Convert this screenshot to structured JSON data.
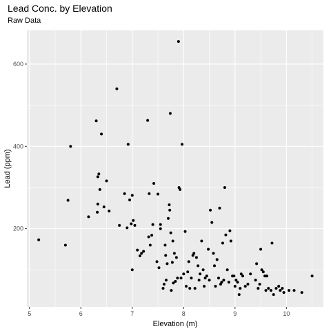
{
  "chart_data": {
    "type": "scatter",
    "title": "Lead Conc. by Elevation",
    "subtitle": "Raw Data",
    "xlabel": "Elevation (m)",
    "ylabel": "Lead (ppm)",
    "xlim": [
      4.95,
      10.72
    ],
    "ylim": [
      10,
      682
    ],
    "xticks": [
      5,
      6,
      7,
      8,
      9,
      10
    ],
    "yticks": [
      200,
      400,
      600
    ],
    "grid": true,
    "point_color": "#000000",
    "panel_color": "#ebebeb",
    "points": [
      [
        5.18,
        173
      ],
      [
        5.7,
        160
      ],
      [
        5.75,
        269
      ],
      [
        5.8,
        400
      ],
      [
        6.15,
        229
      ],
      [
        6.3,
        462
      ],
      [
        6.32,
        240
      ],
      [
        6.33,
        260
      ],
      [
        6.33,
        326
      ],
      [
        6.35,
        333
      ],
      [
        6.37,
        295
      ],
      [
        6.4,
        430
      ],
      [
        6.45,
        253
      ],
      [
        6.5,
        316
      ],
      [
        6.55,
        243
      ],
      [
        6.7,
        540
      ],
      [
        6.75,
        208
      ],
      [
        6.85,
        285
      ],
      [
        6.9,
        202
      ],
      [
        6.92,
        405
      ],
      [
        6.95,
        270
      ],
      [
        6.98,
        212
      ],
      [
        7.0,
        281
      ],
      [
        7.0,
        100
      ],
      [
        7.02,
        220
      ],
      [
        7.05,
        208
      ],
      [
        7.1,
        148
      ],
      [
        7.15,
        134
      ],
      [
        7.18,
        140
      ],
      [
        7.22,
        145
      ],
      [
        7.3,
        463
      ],
      [
        7.32,
        180
      ],
      [
        7.33,
        285
      ],
      [
        7.35,
        160
      ],
      [
        7.38,
        184
      ],
      [
        7.4,
        210
      ],
      [
        7.42,
        310
      ],
      [
        7.48,
        120
      ],
      [
        7.5,
        284
      ],
      [
        7.52,
        105
      ],
      [
        7.55,
        200
      ],
      [
        7.55,
        210
      ],
      [
        7.6,
        55
      ],
      [
        7.62,
        65
      ],
      [
        7.64,
        160
      ],
      [
        7.65,
        135
      ],
      [
        7.66,
        75
      ],
      [
        7.68,
        115
      ],
      [
        7.7,
        225
      ],
      [
        7.72,
        258
      ],
      [
        7.73,
        245
      ],
      [
        7.74,
        480
      ],
      [
        7.75,
        190
      ],
      [
        7.76,
        50
      ],
      [
        7.78,
        118
      ],
      [
        7.79,
        170
      ],
      [
        7.8,
        68
      ],
      [
        7.82,
        140
      ],
      [
        7.84,
        72
      ],
      [
        7.86,
        130
      ],
      [
        7.88,
        80
      ],
      [
        7.9,
        655
      ],
      [
        7.91,
        300
      ],
      [
        7.93,
        295
      ],
      [
        7.95,
        80
      ],
      [
        7.97,
        405
      ],
      [
        8.0,
        90
      ],
      [
        8.03,
        193
      ],
      [
        8.05,
        60
      ],
      [
        8.08,
        95
      ],
      [
        8.1,
        120
      ],
      [
        8.12,
        55
      ],
      [
        8.15,
        80
      ],
      [
        8.18,
        135
      ],
      [
        8.2,
        140
      ],
      [
        8.22,
        55
      ],
      [
        8.25,
        130
      ],
      [
        8.28,
        110
      ],
      [
        8.3,
        75
      ],
      [
        8.32,
        90
      ],
      [
        8.35,
        170
      ],
      [
        8.38,
        100
      ],
      [
        8.4,
        60
      ],
      [
        8.42,
        80
      ],
      [
        8.45,
        85
      ],
      [
        8.48,
        150
      ],
      [
        8.5,
        75
      ],
      [
        8.52,
        245
      ],
      [
        8.55,
        215
      ],
      [
        8.58,
        140
      ],
      [
        8.6,
        110
      ],
      [
        8.62,
        60
      ],
      [
        8.65,
        125
      ],
      [
        8.68,
        80
      ],
      [
        8.7,
        250
      ],
      [
        8.72,
        65
      ],
      [
        8.74,
        70
      ],
      [
        8.76,
        165
      ],
      [
        8.78,
        75
      ],
      [
        8.8,
        300
      ],
      [
        8.82,
        185
      ],
      [
        8.85,
        100
      ],
      [
        8.88,
        70
      ],
      [
        8.9,
        195
      ],
      [
        8.92,
        170
      ],
      [
        8.95,
        85
      ],
      [
        8.98,
        85
      ],
      [
        9.0,
        60
      ],
      [
        9.02,
        75
      ],
      [
        9.05,
        70
      ],
      [
        9.08,
        40
      ],
      [
        9.1,
        55
      ],
      [
        9.12,
        90
      ],
      [
        9.15,
        85
      ],
      [
        9.2,
        60
      ],
      [
        9.25,
        65
      ],
      [
        9.3,
        90
      ],
      [
        9.4,
        75
      ],
      [
        9.42,
        115
      ],
      [
        9.45,
        55
      ],
      [
        9.48,
        65
      ],
      [
        9.5,
        150
      ],
      [
        9.52,
        100
      ],
      [
        9.55,
        95
      ],
      [
        9.58,
        85
      ],
      [
        9.6,
        50
      ],
      [
        9.62,
        85
      ],
      [
        9.65,
        55
      ],
      [
        9.7,
        50
      ],
      [
        9.72,
        165
      ],
      [
        9.75,
        40
      ],
      [
        9.8,
        55
      ],
      [
        9.85,
        60
      ],
      [
        9.88,
        50
      ],
      [
        9.92,
        55
      ],
      [
        9.95,
        45
      ],
      [
        10.05,
        50
      ],
      [
        10.15,
        50
      ],
      [
        10.3,
        45
      ],
      [
        10.5,
        85
      ]
    ]
  }
}
